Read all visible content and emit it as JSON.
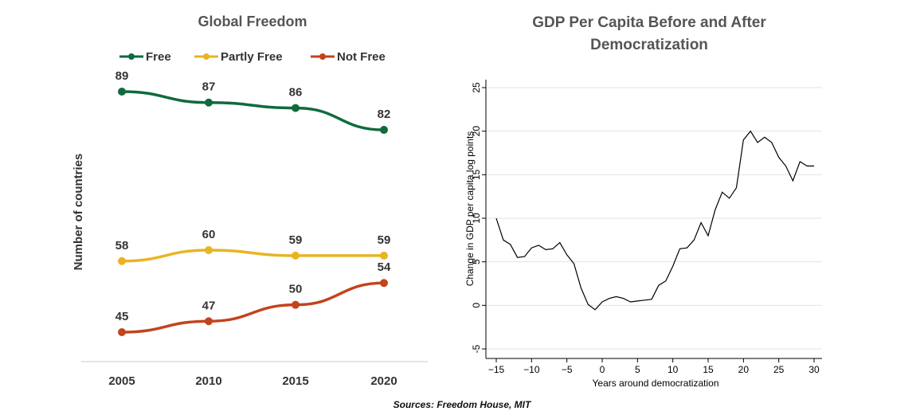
{
  "chart_data": [
    {
      "type": "line",
      "title": "Global Freedom",
      "xlabel": "",
      "ylabel": "Number of countries",
      "categories": [
        "2005",
        "2010",
        "2015",
        "2020"
      ],
      "ylim": [
        40,
        92
      ],
      "grid": false,
      "legend_position": "top",
      "series": [
        {
          "name": "Free",
          "color": "#0f6b3c",
          "values": [
            89,
            87,
            86,
            82
          ]
        },
        {
          "name": "Partly Free",
          "color": "#e9b424",
          "values": [
            58,
            60,
            59,
            59
          ]
        },
        {
          "name": "Not Free",
          "color": "#c2441d",
          "values": [
            45,
            47,
            50,
            54
          ]
        }
      ]
    },
    {
      "type": "line",
      "title": "GDP Per Capita Before and After Democratization",
      "title_lines": [
        "GDP Per Capita Before and After",
        "Democratization"
      ],
      "xlabel": "Years around democratization",
      "ylabel": "Change in GDP per capita log points",
      "xlim": [
        -15,
        30
      ],
      "ylim": [
        -5,
        25
      ],
      "xticks": [
        -15,
        -10,
        -5,
        0,
        5,
        10,
        15,
        20,
        25,
        30
      ],
      "yticks": [
        -5,
        0,
        5,
        10,
        15,
        20,
        25
      ],
      "grid": true,
      "color": "#000000",
      "x": [
        -15,
        -14,
        -13,
        -12,
        -11,
        -10,
        -9,
        -8,
        -7,
        -6,
        -5,
        -4,
        -3,
        -2,
        -1,
        0,
        1,
        2,
        3,
        4,
        5,
        6,
        7,
        8,
        9,
        10,
        11,
        12,
        13,
        14,
        15,
        16,
        17,
        18,
        19,
        20,
        21,
        22,
        23,
        24,
        25,
        26,
        27,
        28,
        29,
        30
      ],
      "y": [
        10,
        7.5,
        7,
        5.5,
        5.6,
        6.6,
        6.9,
        6.4,
        6.5,
        7.2,
        5.8,
        4.8,
        2,
        0.1,
        -0.5,
        0.4,
        0.8,
        1,
        0.8,
        0.4,
        0.5,
        0.6,
        0.7,
        2.3,
        2.8,
        4.5,
        6.5,
        6.6,
        7.5,
        9.5,
        8,
        11,
        13,
        12.3,
        13.5,
        19,
        20,
        18.7,
        19.3,
        18.7,
        17,
        16,
        14.3,
        16.5,
        16,
        16
      ]
    }
  ],
  "source": "Sources: Freedom House, MIT"
}
